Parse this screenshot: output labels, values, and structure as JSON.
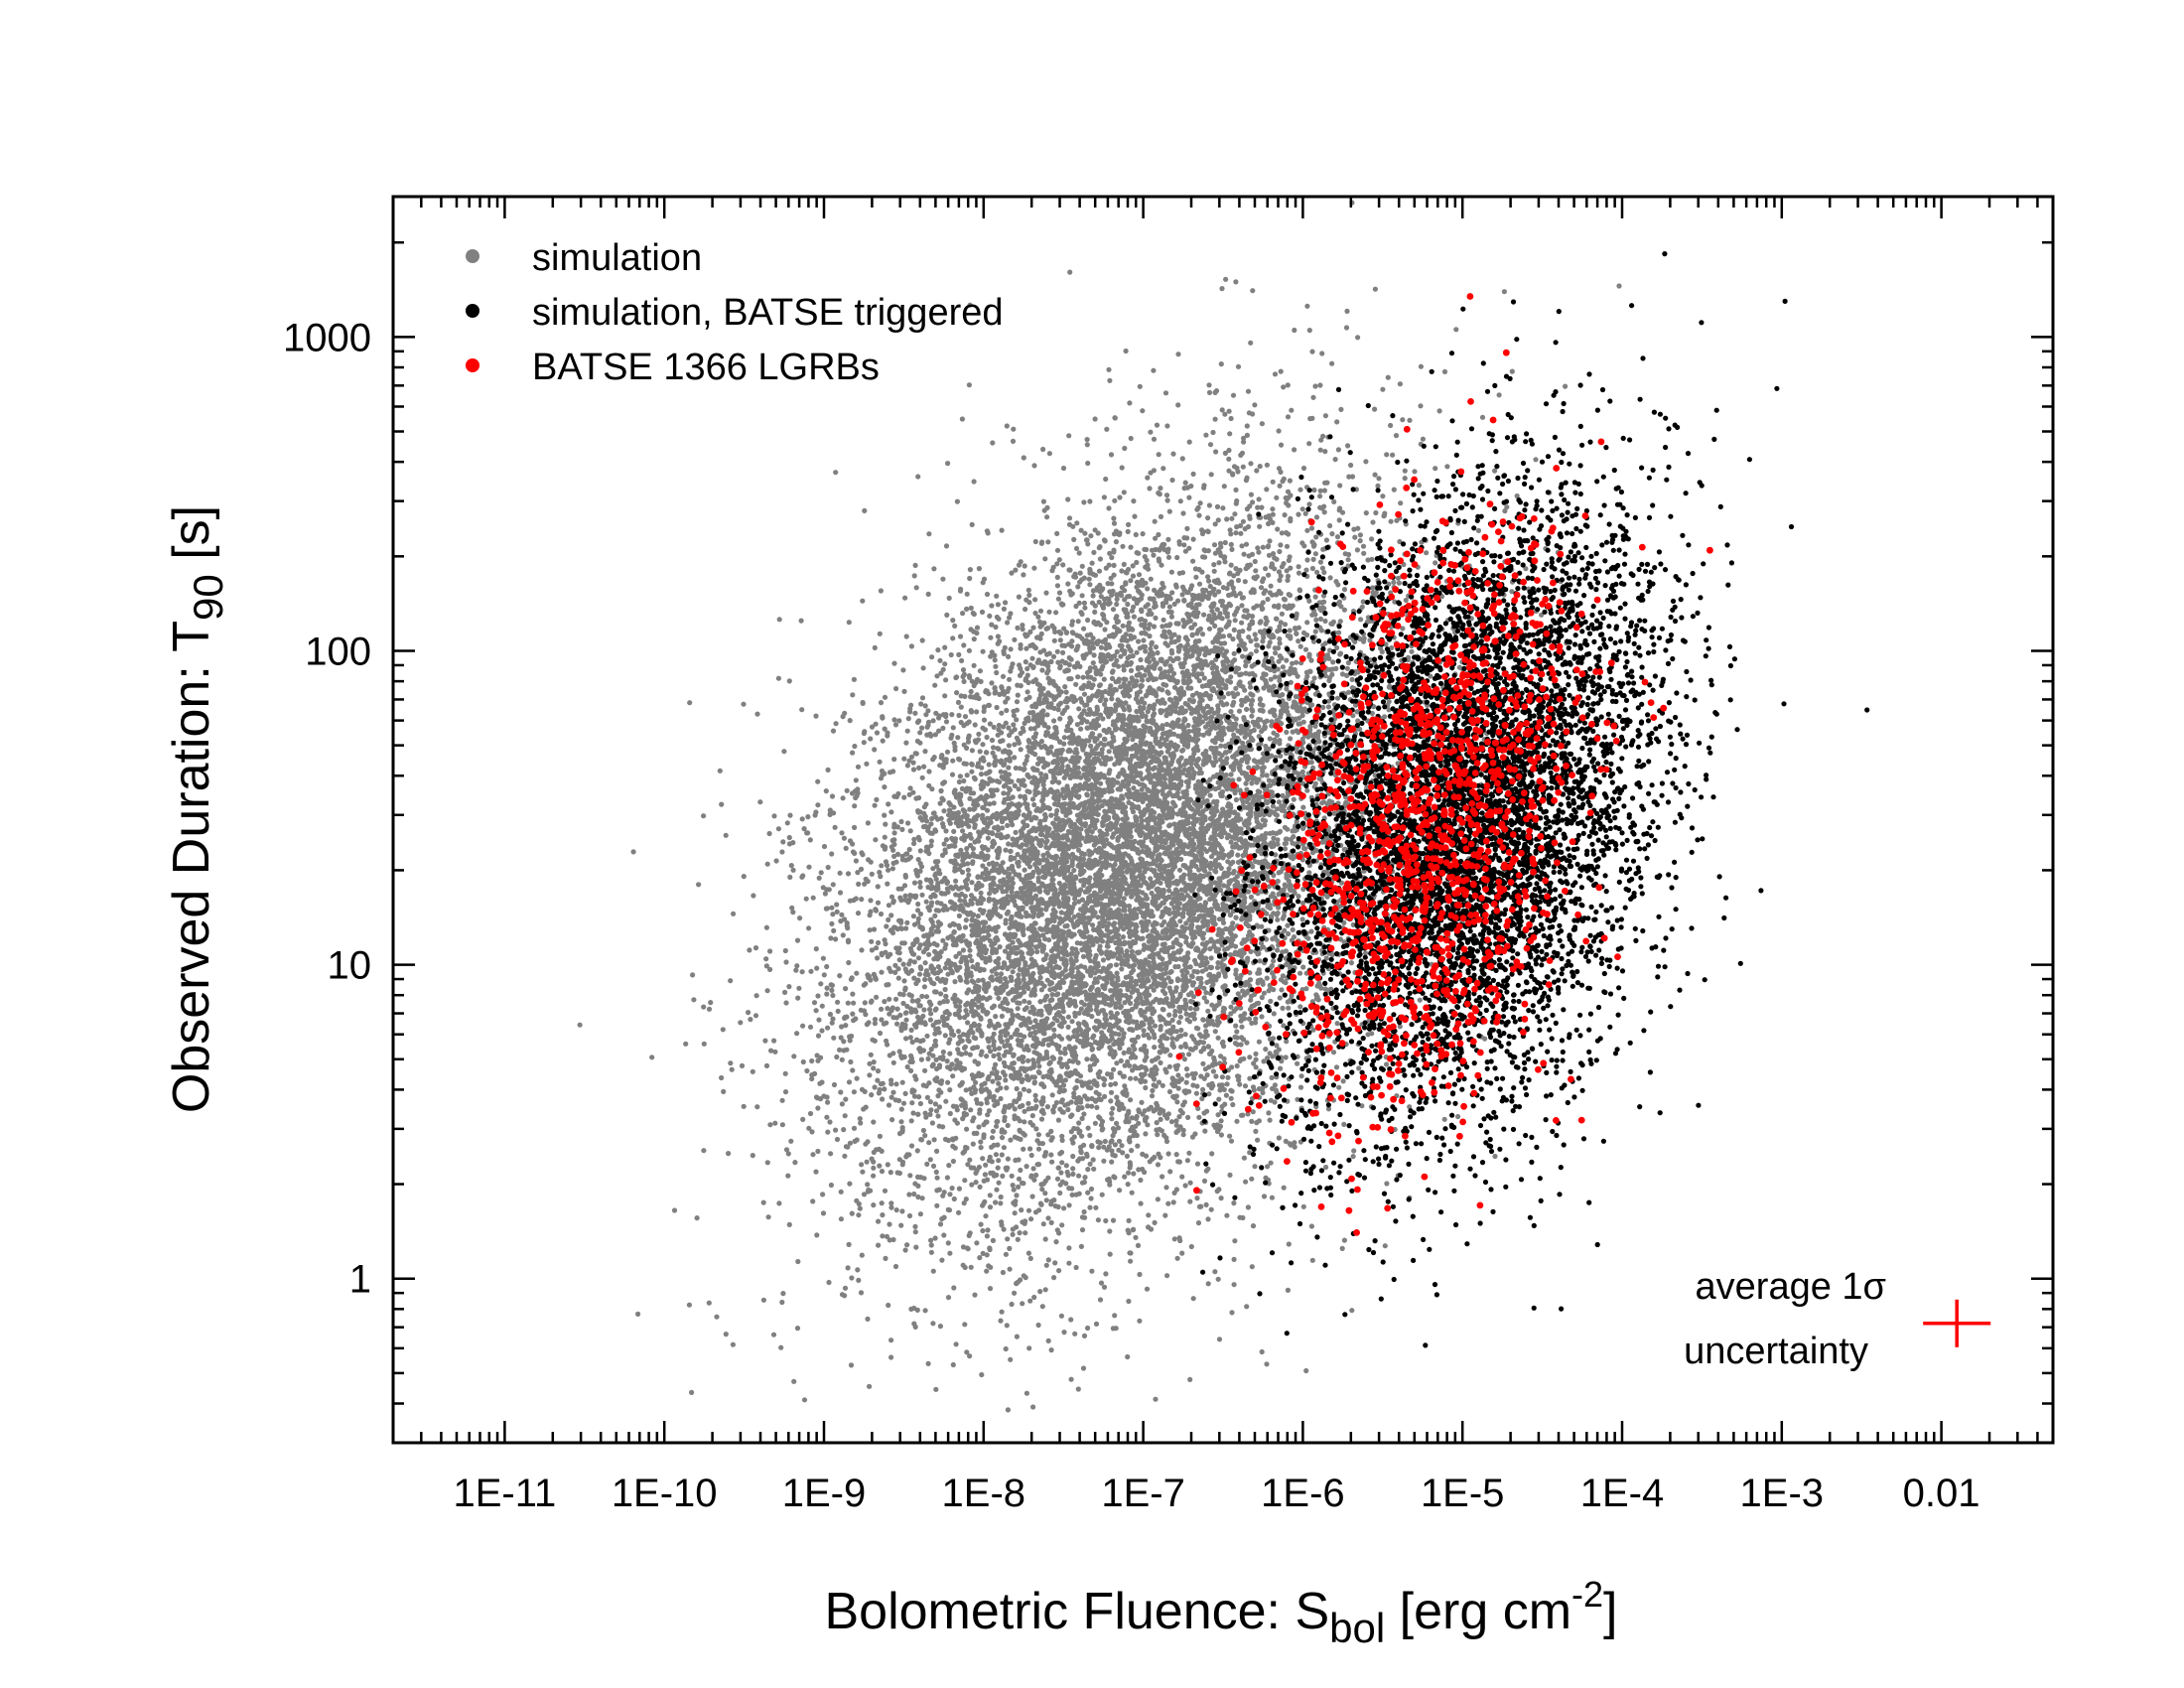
{
  "chart_data": {
    "type": "scatter",
    "xscale": "log",
    "yscale": "log",
    "xlim": [
      2e-12,
      0.05
    ],
    "ylim": [
      0.3,
      2800
    ],
    "xlabel": {
      "main": "Bolometric Fluence: S",
      "sub": "bol",
      "unit": " [erg cm",
      "sup": "-2",
      "end": "]"
    },
    "ylabel": {
      "main": "Observed Duration: T",
      "sub": "90",
      "unit": " [s]"
    },
    "xticks": [
      {
        "value": 1e-11,
        "label": "1E-11"
      },
      {
        "value": 1e-10,
        "label": "1E-10"
      },
      {
        "value": 1e-09,
        "label": "1E-9"
      },
      {
        "value": 1e-08,
        "label": "1E-8"
      },
      {
        "value": 1e-07,
        "label": "1E-7"
      },
      {
        "value": 1e-06,
        "label": "1E-6"
      },
      {
        "value": 1e-05,
        "label": "1E-5"
      },
      {
        "value": 0.0001,
        "label": "1E-4"
      },
      {
        "value": 0.001,
        "label": "1E-3"
      },
      {
        "value": 0.01,
        "label": "0.01"
      }
    ],
    "yticks": [
      {
        "value": 1,
        "label": "1"
      },
      {
        "value": 10,
        "label": "10"
      },
      {
        "value": 100,
        "label": "100"
      },
      {
        "value": 1000,
        "label": "1000"
      }
    ],
    "legend": {
      "position": "top-left",
      "entries": [
        {
          "name": "simulation",
          "color": "#808080"
        },
        {
          "name": "simulation, BATSE triggered",
          "color": "#000000"
        },
        {
          "name": "BATSE 1366 LGRBs",
          "color": "#ff0000"
        }
      ]
    },
    "series": [
      {
        "name": "simulation",
        "color": "#808080",
        "approx_count": 12000,
        "distribution": "bivariate lognormal",
        "center": {
          "x": 8e-08,
          "y": 22
        },
        "spread_log10": {
          "x": 0.85,
          "y": 0.55
        },
        "correlation": 0.35
      },
      {
        "name": "simulation, BATSE triggered",
        "color": "#000000",
        "approx_count": 7000,
        "x_min": 2e-07,
        "center": {
          "x": 1e-05,
          "y": 30
        },
        "spread_log10": {
          "x": 0.6,
          "y": 0.5
        },
        "correlation": 0.3
      },
      {
        "name": "BATSE 1366 LGRBs",
        "color": "#ff0000",
        "count": 1366,
        "center": {
          "x": 6e-06,
          "y": 28
        },
        "spread_log10": {
          "x": 0.48,
          "y": 0.45
        },
        "correlation": 0.3
      }
    ],
    "annotation": {
      "line1": "average 1σ",
      "line2": "uncertainty",
      "color": "#ff0000",
      "x": 0.0125,
      "y": 0.72
    }
  }
}
